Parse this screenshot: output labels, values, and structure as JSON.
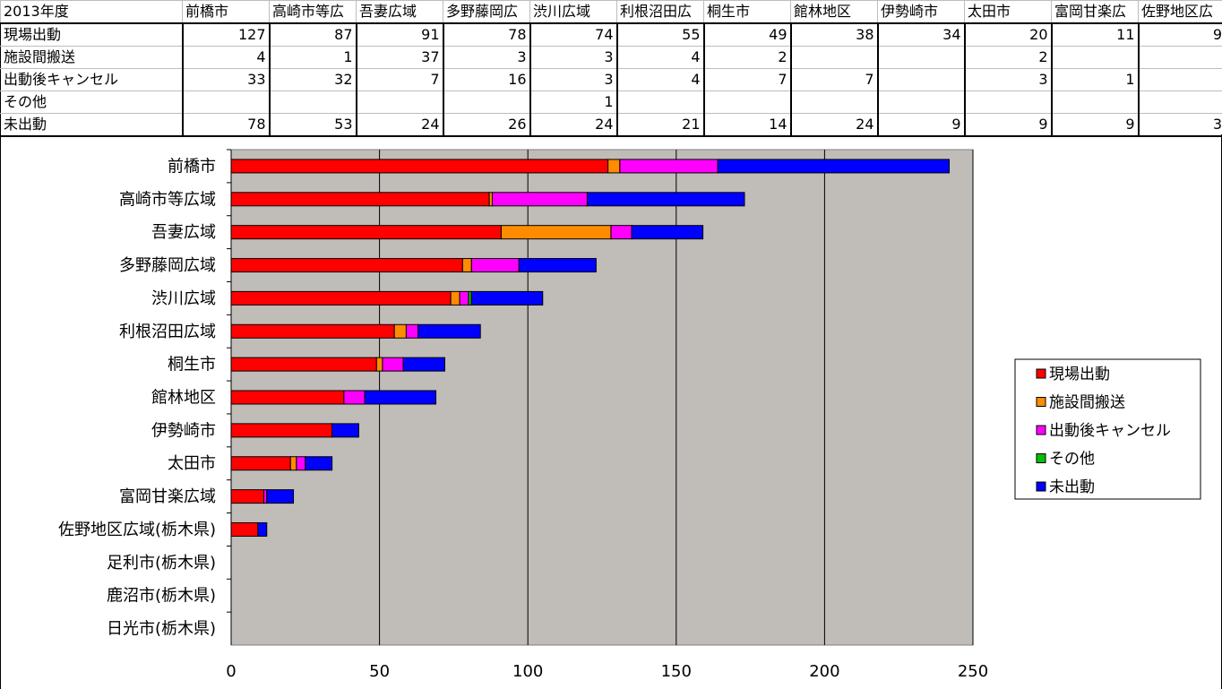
{
  "table": {
    "corner": "2013年度",
    "columns": [
      "前橋市",
      "高崎市等広",
      "吾妻広域",
      "多野藤岡広",
      "渋川広域",
      "利根沼田広",
      "桐生市",
      "館林地区",
      "伊勢崎市",
      "太田市",
      "富岡甘楽広",
      "佐野地区広"
    ],
    "rows": [
      {
        "label": "現場出動",
        "cells": [
          "127",
          "87",
          "91",
          "78",
          "74",
          "55",
          "49",
          "38",
          "34",
          "20",
          "11",
          "9"
        ]
      },
      {
        "label": "施設間搬送",
        "cells": [
          "4",
          "1",
          "37",
          "3",
          "3",
          "4",
          "2",
          "",
          "",
          "2",
          "",
          ""
        ]
      },
      {
        "label": "出動後キャンセル",
        "cells": [
          "33",
          "32",
          "7",
          "16",
          "3",
          "4",
          "7",
          "7",
          "",
          "3",
          "1",
          ""
        ]
      },
      {
        "label": "その他",
        "cells": [
          "",
          "",
          "",
          "",
          "1",
          "",
          "",
          "",
          "",
          "",
          "",
          ""
        ]
      },
      {
        "label": "未出動",
        "cells": [
          "78",
          "53",
          "24",
          "26",
          "24",
          "21",
          "14",
          "24",
          "9",
          "9",
          "9",
          "3"
        ]
      }
    ]
  },
  "chart_data": {
    "type": "bar",
    "orientation": "horizontal",
    "stacked": true,
    "categories": [
      "前橋市",
      "高崎市等広域",
      "吾妻広域",
      "多野藤岡広域",
      "渋川広域",
      "利根沼田広域",
      "桐生市",
      "館林地区",
      "伊勢崎市",
      "太田市",
      "富岡甘楽広域",
      "佐野地区広域(栃木県)",
      "足利市(栃木県)",
      "鹿沼市(栃木県)",
      "日光市(栃木県)"
    ],
    "series": [
      {
        "name": "現場出動",
        "color": "#ff0000",
        "values": [
          127,
          87,
          91,
          78,
          74,
          55,
          49,
          38,
          34,
          20,
          11,
          9,
          0,
          0,
          0
        ]
      },
      {
        "name": "施設間搬送",
        "color": "#ff8c00",
        "values": [
          4,
          1,
          37,
          3,
          3,
          4,
          2,
          0,
          0,
          2,
          0,
          0,
          0,
          0,
          0
        ]
      },
      {
        "name": "出動後キャンセル",
        "color": "#ff00ff",
        "values": [
          33,
          32,
          7,
          16,
          3,
          4,
          7,
          7,
          0,
          3,
          1,
          0,
          0,
          0,
          0
        ]
      },
      {
        "name": "その他",
        "color": "#00c000",
        "values": [
          0,
          0,
          0,
          0,
          1,
          0,
          0,
          0,
          0,
          0,
          0,
          0,
          0,
          0,
          0
        ]
      },
      {
        "name": "未出動",
        "color": "#0000ff",
        "values": [
          78,
          53,
          24,
          26,
          24,
          21,
          14,
          24,
          9,
          9,
          9,
          3,
          0,
          0,
          0
        ]
      }
    ],
    "xlim": [
      0,
      250
    ],
    "xticks": [
      0,
      50,
      100,
      150,
      200,
      250
    ],
    "grid": true,
    "plot_background": "#c0bcb8",
    "legend_position": "right"
  }
}
